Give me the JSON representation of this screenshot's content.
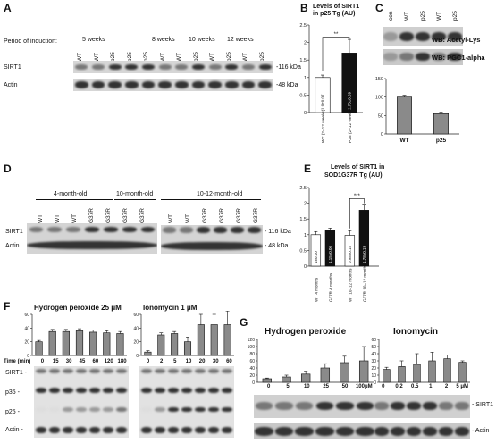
{
  "panels": {
    "A": {
      "letter": "A",
      "period_label": "Period of induction:",
      "groups": [
        "5 weeks",
        "8 weeks",
        "10 weeks",
        "12 weeks"
      ],
      "lanes": [
        "WT",
        "WT",
        "p25",
        "p25",
        "p25",
        "WT",
        "WT",
        "p25",
        "WT",
        "p25",
        "WT",
        "p25"
      ],
      "rows": [
        "SIRT1",
        "Actin"
      ],
      "markers": [
        "-116 kDa",
        "-48 kDa"
      ]
    },
    "B": {
      "letter": "B",
      "title": "Levels of SIRT1 in p25 Tg (AU)",
      "sig": "**",
      "bar_labels": [
        "1.0±0.07",
        "1.70±0.39"
      ],
      "xlabels": [
        "WT (2–12 weeks)",
        "P25 (2–12 weeks)"
      ]
    },
    "C": {
      "letter": "C",
      "lanes": [
        "con",
        "WT",
        "p25",
        "WT",
        "p25"
      ],
      "wb": [
        "WB: Acetyl-Lys",
        "WB: PGC1-alpha"
      ]
    },
    "D": {
      "letter": "D",
      "ages": [
        "4-month-old",
        "10-month-old",
        "10-12-month-old"
      ],
      "lanes_left": [
        "WT",
        "WT",
        "WT",
        "G37R",
        "G37R",
        "G37R",
        "G37R"
      ],
      "lanes_right": [
        "WT",
        "WT",
        "G37R",
        "G37R",
        "G37R",
        "G37R"
      ],
      "rows": [
        "SIRT1",
        "Actin"
      ],
      "markers": [
        "- 116 kDa",
        "- 48 kDa"
      ]
    },
    "E": {
      "letter": "E",
      "title_line1": "Levels of SIRT1 in",
      "title_line2": "SOD1G37R Tg (AU)",
      "sig": "***",
      "bar_labels": [
        "1±0.10",
        "1.15±0.06",
        "0.98±0.15",
        "1.78±0.19"
      ],
      "xlabels": [
        "WT 4 months",
        "G37R 4 months",
        "WT 10–12 months",
        "G37R 10–12 months"
      ]
    },
    "F": {
      "letter": "F",
      "title_left": "Hydrogen peroxide  25 μM",
      "title_right": "Ionomycin  1 μM",
      "time_label": "Time (min)",
      "times_left": [
        "0",
        "15",
        "30",
        "45",
        "60",
        "120",
        "180"
      ],
      "times_right": [
        "0",
        "2",
        "5",
        "10",
        "20",
        "30",
        "60"
      ],
      "rows": [
        "SIRT1 -",
        "p35 -",
        "p25 -",
        "Actin -"
      ]
    },
    "G": {
      "letter": "G",
      "title_left": "Hydrogen peroxide",
      "title_right": "Ionomycin",
      "doses_left": [
        "0",
        "5",
        "10",
        "25",
        "50",
        "100μM"
      ],
      "doses_right": [
        "0",
        "0.2",
        "0.5",
        "1",
        "2",
        "5 μM"
      ],
      "rows": [
        "- SIRT1",
        "- Actin"
      ]
    }
  },
  "chart_data": [
    {
      "type": "bar",
      "panel": "B",
      "categories": [
        "WT (2–12 weeks)",
        "P25 (2–12 weeks)"
      ],
      "values": [
        1.0,
        1.7
      ],
      "errors": [
        0.07,
        0.39
      ],
      "ylim": [
        0,
        2.5
      ],
      "yticks": [
        "0",
        "0.5",
        "1",
        "1.5",
        "2",
        "2.5"
      ]
    },
    {
      "type": "bar",
      "panel": "C",
      "categories": [
        "WT",
        "p25"
      ],
      "values": [
        100,
        55
      ],
      "errors": [
        5,
        4
      ],
      "ylim": [
        0,
        150
      ],
      "yticks": [
        "0",
        "50",
        "100",
        "150"
      ]
    },
    {
      "type": "bar",
      "panel": "E",
      "categories": [
        "WT 4 months",
        "G37R 4 months",
        "WT 10–12 months",
        "G37R 10–12 months"
      ],
      "values": [
        1.0,
        1.15,
        0.98,
        1.78
      ],
      "errors": [
        0.1,
        0.06,
        0.15,
        0.19
      ],
      "ylim": [
        0,
        2.5
      ],
      "yticks": [
        "0",
        "0.5",
        "1",
        "1.5",
        "2",
        "2.5"
      ]
    },
    {
      "type": "bar",
      "panel": "F-left",
      "categories": [
        "0",
        "15",
        "30",
        "45",
        "60",
        "120",
        "180"
      ],
      "values": [
        20,
        35,
        35,
        36,
        34,
        33,
        32
      ],
      "errors": [
        2,
        3,
        3,
        3,
        3,
        3,
        3
      ],
      "ylim": [
        0,
        60
      ],
      "yticks": [
        "0",
        "20",
        "40",
        "60"
      ]
    },
    {
      "type": "bar",
      "panel": "F-right",
      "categories": [
        "0",
        "2",
        "5",
        "10",
        "20",
        "30",
        "60"
      ],
      "values": [
        5,
        30,
        32,
        20,
        45,
        45,
        45
      ],
      "errors": [
        2,
        3,
        3,
        7,
        15,
        15,
        20
      ],
      "ylim": [
        0,
        60
      ],
      "yticks": [
        "0",
        "20",
        "40",
        "60"
      ]
    },
    {
      "type": "bar",
      "panel": "G-left",
      "categories": [
        "0",
        "5",
        "10",
        "25",
        "50",
        "100μM"
      ],
      "values": [
        10,
        15,
        23,
        40,
        55,
        60
      ],
      "errors": [
        2,
        5,
        8,
        12,
        18,
        40
      ],
      "ylim": [
        0,
        120
      ],
      "yticks": [
        "0",
        "20",
        "40",
        "60",
        "80",
        "100",
        "120"
      ]
    },
    {
      "type": "bar",
      "panel": "G-right",
      "categories": [
        "0",
        "0.2",
        "0.5",
        "1",
        "2",
        "5 μM"
      ],
      "values": [
        18,
        22,
        25,
        30,
        33,
        28
      ],
      "errors": [
        3,
        8,
        15,
        12,
        5,
        2
      ],
      "ylim": [
        0,
        60
      ],
      "yticks": [
        "0",
        "10",
        "20",
        "30",
        "40",
        "50",
        "60"
      ]
    }
  ],
  "colors": {
    "bar_grey": "#8a8a8a",
    "bar_black": "#111111",
    "bar_white": "#ffffff",
    "blot_bg": "#dcdcdc"
  }
}
